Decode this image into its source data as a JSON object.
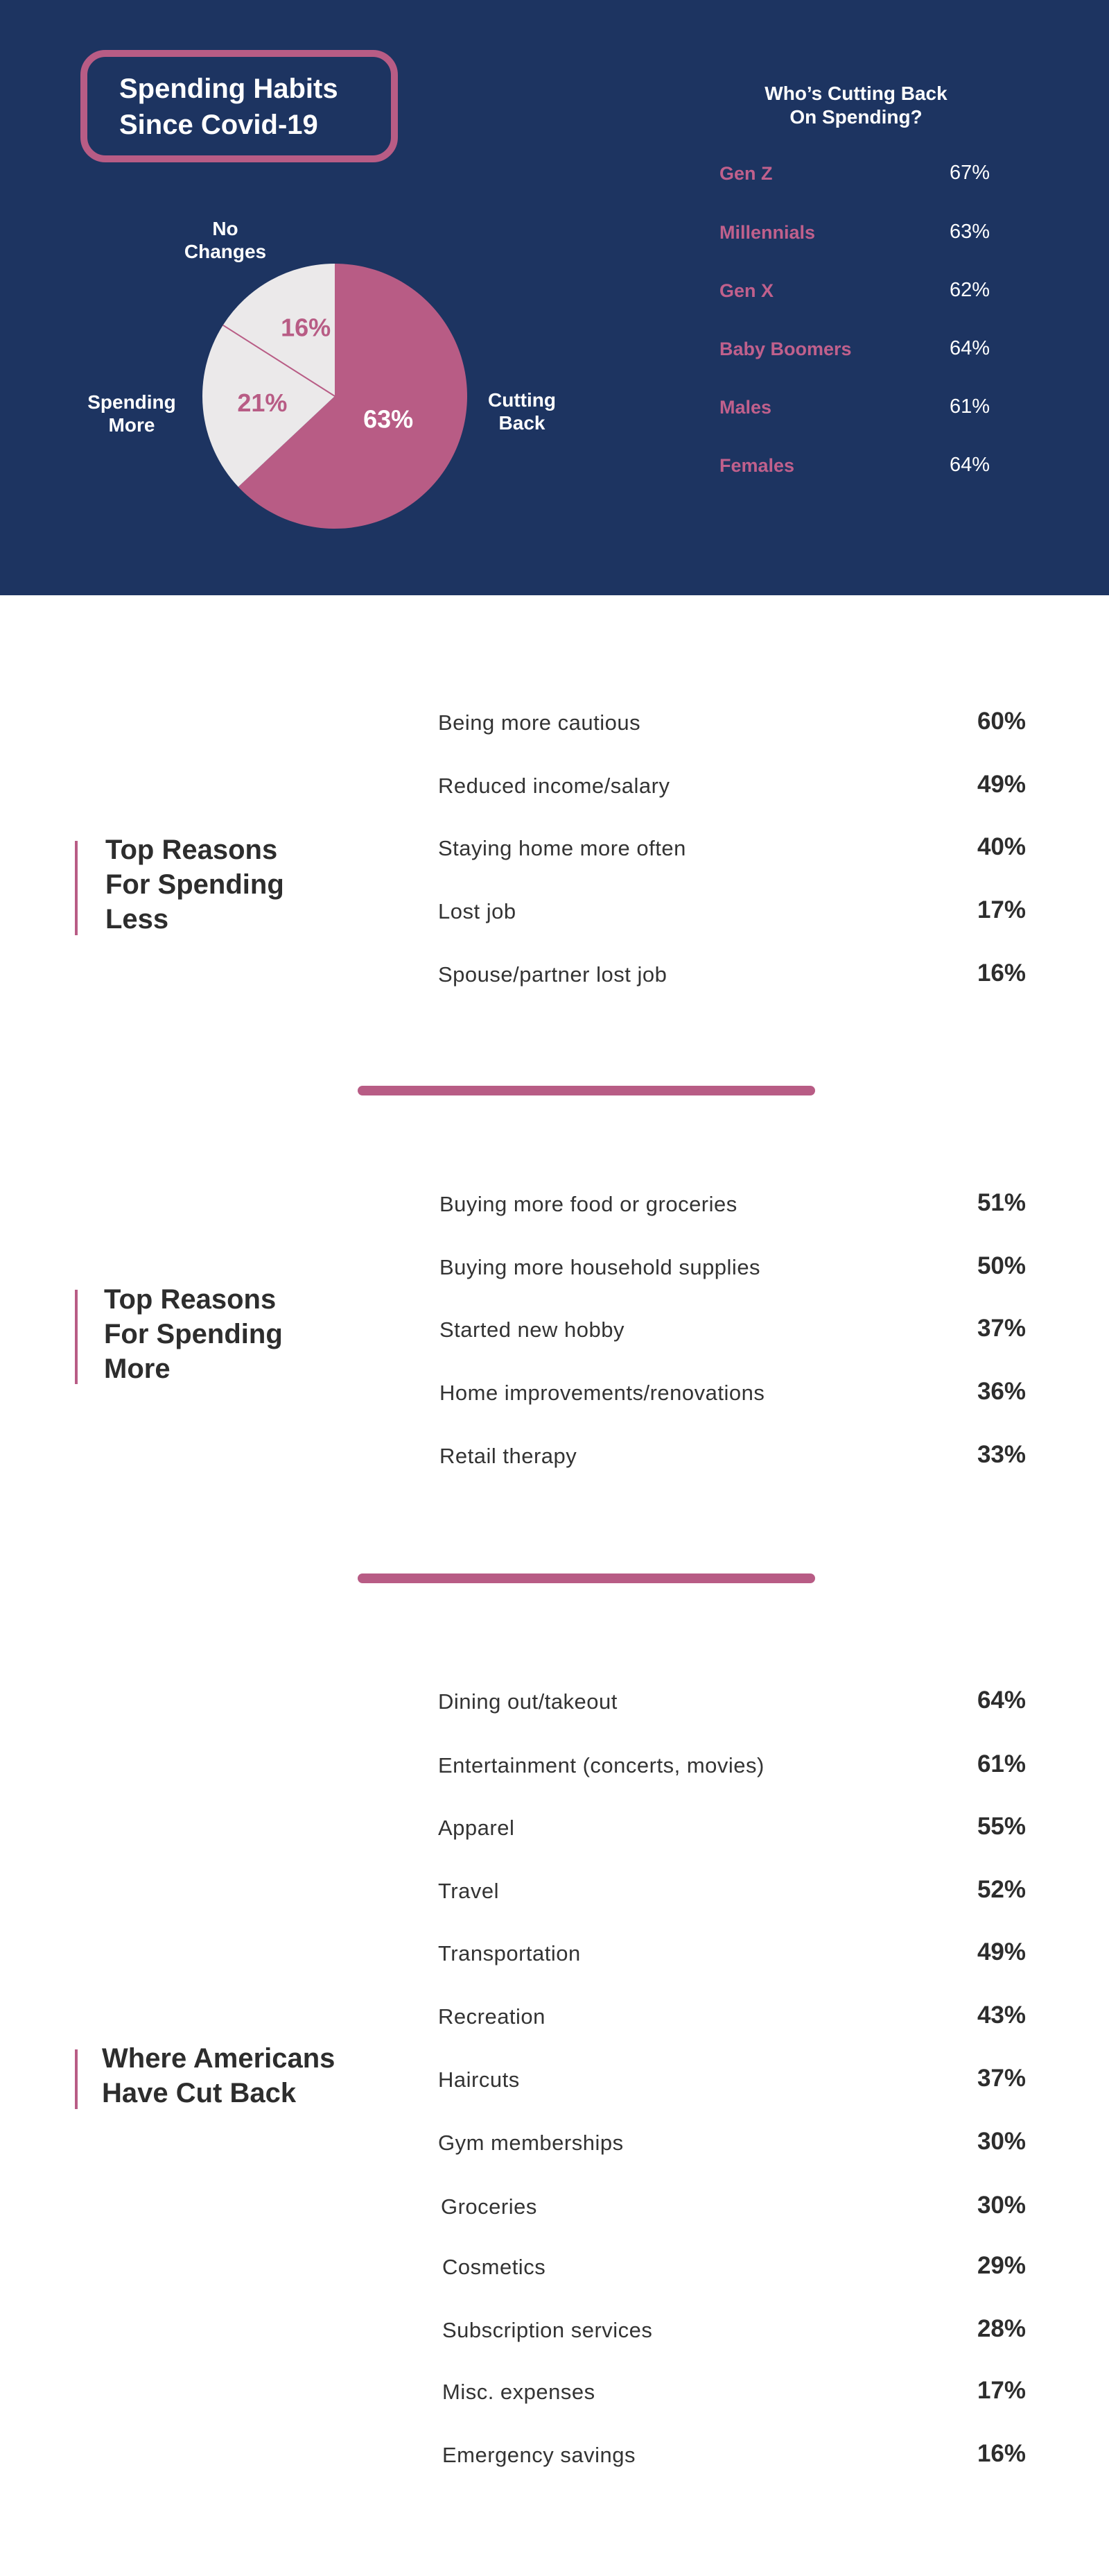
{
  "header": {
    "title_line1": "Spending Habits",
    "title_line2": "Since Covid-19"
  },
  "chart_data": [
    {
      "type": "pie",
      "slices": [
        {
          "label": "Cutting Back",
          "value": 63,
          "display": "63%"
        },
        {
          "label": "Spending More",
          "value": 21,
          "display": "21%"
        },
        {
          "label": "No Changes",
          "value": 16,
          "display": "16%"
        }
      ],
      "labels": {
        "no_changes": [
          "No",
          "Changes"
        ],
        "spending_more": [
          "Spending",
          "More"
        ],
        "cutting_back": [
          "Cutting",
          "Back"
        ]
      },
      "colors": {
        "cutting_back": "#b85c85",
        "other": "#ebe9ea",
        "value_label_on_light": "#b85c85",
        "value_label_on_dark": "#ffffff"
      }
    },
    {
      "type": "table",
      "title_lines": [
        "Who’s Cutting Back",
        "On Spending?"
      ],
      "rows": [
        {
          "group": "Gen Z",
          "display": "67%",
          "value": 67
        },
        {
          "group": "Millennials",
          "display": "63%",
          "value": 63
        },
        {
          "group": "Gen X",
          "display": "62%",
          "value": 62
        },
        {
          "group": "Baby Boomers",
          "display": "64%",
          "value": 64
        },
        {
          "group": "Males",
          "display": "61%",
          "value": 61
        },
        {
          "group": "Females",
          "display": "64%",
          "value": 64
        }
      ]
    },
    {
      "type": "table",
      "title_lines": [
        "Top Reasons",
        "For Spending",
        "Less"
      ],
      "rows": [
        {
          "label": "Being more cautious",
          "display": "60%",
          "value": 60
        },
        {
          "label": "Reduced income/salary",
          "display": "49%",
          "value": 49
        },
        {
          "label": "Staying home more often",
          "display": "40%",
          "value": 40
        },
        {
          "label": "Lost job",
          "display": "17%",
          "value": 17
        },
        {
          "label": "Spouse/partner lost job",
          "display": "16%",
          "value": 16
        }
      ]
    },
    {
      "type": "table",
      "title_lines": [
        "Top Reasons",
        "For Spending",
        "More"
      ],
      "rows": [
        {
          "label": "Buying more food or groceries",
          "display": "51%",
          "value": 51
        },
        {
          "label": "Buying more household supplies",
          "display": "50%",
          "value": 50
        },
        {
          "label": "Started new hobby",
          "display": "37%",
          "value": 37
        },
        {
          "label": "Home improvements/renovations",
          "display": "36%",
          "value": 36
        },
        {
          "label": "Retail therapy",
          "display": "33%",
          "value": 33
        }
      ]
    },
    {
      "type": "table",
      "title_lines": [
        "Where Americans",
        "Have Cut Back"
      ],
      "rows": [
        {
          "label": "Dining out/takeout",
          "display": "64%",
          "value": 64
        },
        {
          "label": "Entertainment (concerts, movies)",
          "display": "61%",
          "value": 61
        },
        {
          "label": "Apparel",
          "display": "55%",
          "value": 55
        },
        {
          "label": "Travel",
          "display": "52%",
          "value": 52
        },
        {
          "label": "Transportation",
          "display": "49%",
          "value": 49
        },
        {
          "label": "Recreation",
          "display": "43%",
          "value": 43
        },
        {
          "label": "Haircuts",
          "display": "37%",
          "value": 37
        },
        {
          "label": "Gym memberships",
          "display": "30%",
          "value": 30
        },
        {
          "label": "Groceries",
          "display": "30%",
          "value": 30
        },
        {
          "label": "Cosmetics",
          "display": "29%",
          "value": 29
        },
        {
          "label": "Subscription services",
          "display": "28%",
          "value": 28
        },
        {
          "label": "Misc. expenses",
          "display": "17%",
          "value": 17
        },
        {
          "label": "Emergency savings",
          "display": "16%",
          "value": 16
        }
      ]
    }
  ],
  "colors": {
    "navy": "#1d3461",
    "accent": "#b85c85",
    "text_dark": "#2d2d2d"
  }
}
